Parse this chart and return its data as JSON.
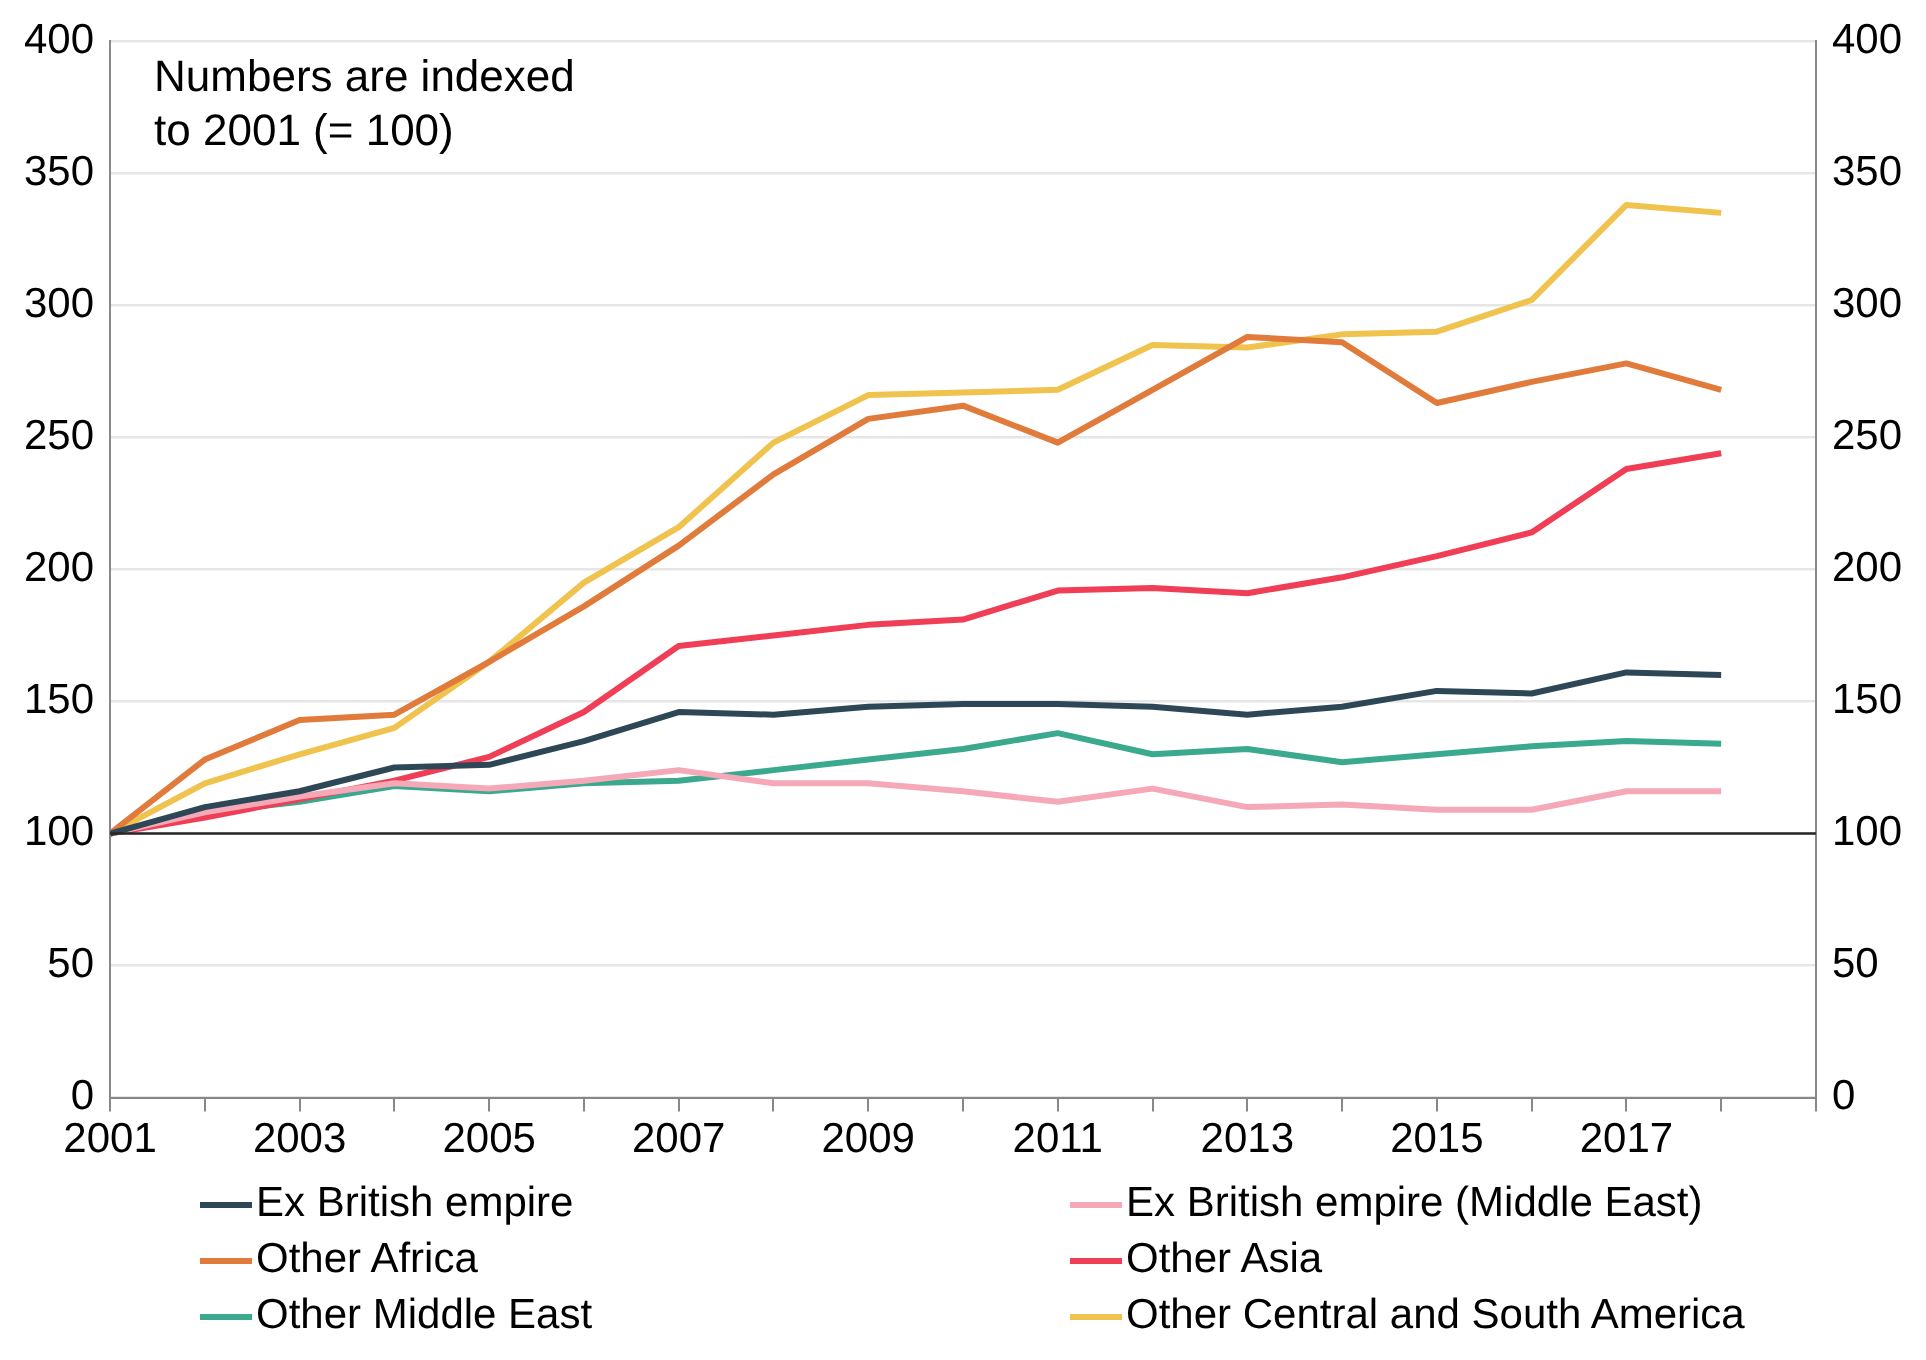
{
  "chart_data": {
    "type": "line",
    "annotations": [
      "Numbers are indexed\nto 2001 (= 100)"
    ],
    "x": [
      2001,
      2002,
      2003,
      2004,
      2005,
      2006,
      2007,
      2008,
      2009,
      2010,
      2011,
      2012,
      2013,
      2014,
      2015,
      2016,
      2017,
      2018
    ],
    "xlim": [
      2001,
      2019
    ],
    "xticks": [
      2001,
      {
        "value": 2002,
        "label": null
      },
      2003,
      {
        "value": 2004,
        "label": null
      },
      2005,
      {
        "value": 2006,
        "label": null
      },
      2007,
      {
        "value": 2008,
        "label": null
      },
      2009,
      {
        "value": 2010,
        "label": null
      },
      2011,
      {
        "value": 2012,
        "label": null
      },
      2013,
      {
        "value": 2014,
        "label": null
      },
      2015,
      {
        "value": 2016,
        "label": null
      },
      2017,
      {
        "value": 2018,
        "label": null
      },
      {
        "value": 2019,
        "label": null
      }
    ],
    "ylim": [
      0,
      400
    ],
    "yticks": [
      0,
      50,
      100,
      150,
      200,
      250,
      300,
      350,
      400
    ],
    "y2lim": [
      0,
      400
    ],
    "y2ticks": [
      0,
      50,
      100,
      150,
      200,
      250,
      300,
      350,
      400
    ],
    "grid": "y",
    "legend": "bottom",
    "marker": "none",
    "line_style": "solid",
    "ref_lines": [
      {
        "axis": "y",
        "value": 100,
        "color": "#262626"
      }
    ],
    "series": [
      {
        "name": "Ex British empire",
        "color": "#2e4756",
        "values": [
          100,
          110,
          116,
          125,
          126,
          135,
          146,
          145,
          148,
          149,
          149,
          148,
          145,
          148,
          154,
          153,
          161,
          160
        ]
      },
      {
        "name": "Ex British empire (Middle East)",
        "color": "#f5a9b8",
        "values": [
          100,
          108,
          114,
          119,
          117,
          120,
          124,
          119,
          119,
          116,
          112,
          117,
          110,
          111,
          109,
          109,
          116,
          116
        ]
      },
      {
        "name": "Other Africa",
        "color": "#e07b3c",
        "values": [
          100,
          128,
          143,
          145,
          165,
          186,
          209,
          236,
          257,
          262,
          248,
          268,
          288,
          286,
          263,
          271,
          278,
          268
        ]
      },
      {
        "name": "Other Asia",
        "color": "#ef3e56",
        "values": [
          100,
          106,
          113,
          120,
          129,
          146,
          171,
          175,
          179,
          181,
          192,
          193,
          191,
          197,
          205,
          214,
          238,
          244
        ]
      },
      {
        "name": "Other Middle East",
        "color": "#3aa98e",
        "values": [
          100,
          108,
          112,
          118,
          116,
          119,
          120,
          124,
          128,
          132,
          138,
          130,
          132,
          127,
          130,
          133,
          135,
          134
        ]
      },
      {
        "name": "Other Central and South America",
        "color": "#f0c24e",
        "values": [
          100,
          119,
          130,
          140,
          165,
          195,
          216,
          248,
          266,
          267,
          268,
          285,
          284,
          289,
          290,
          302,
          338,
          335
        ]
      }
    ]
  }
}
